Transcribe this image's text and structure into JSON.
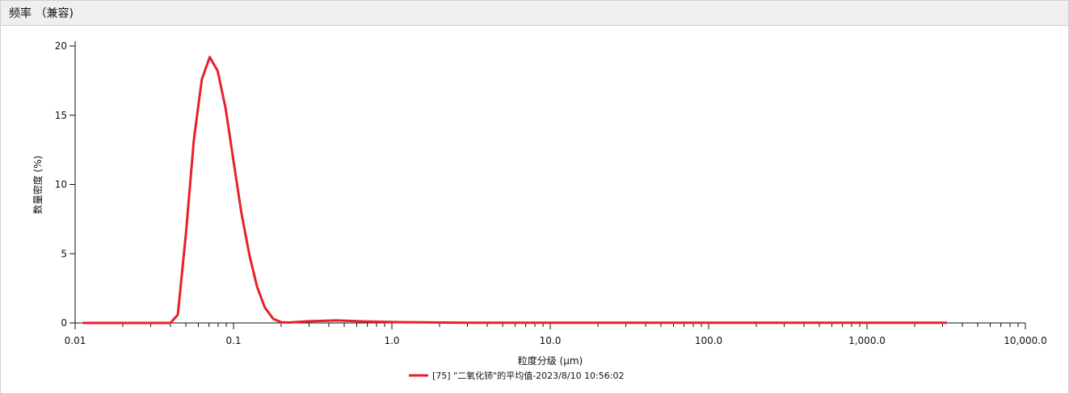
{
  "panel": {
    "title": "频率 （兼容)"
  },
  "chart_data": {
    "type": "line",
    "xlabel": "粒度分级 (μm)",
    "ylabel": "数量密度 (%)",
    "x_scale": "log",
    "xlim": [
      0.01,
      10000
    ],
    "ylim": [
      0,
      20
    ],
    "x_ticks": [
      {
        "value": 0.01,
        "label": "0.01"
      },
      {
        "value": 0.1,
        "label": "0.1"
      },
      {
        "value": 1,
        "label": "1.0"
      },
      {
        "value": 10,
        "label": "10.0"
      },
      {
        "value": 100,
        "label": "100.0"
      },
      {
        "value": 1000,
        "label": "1,000.0"
      },
      {
        "value": 10000,
        "label": "10,000.0"
      }
    ],
    "y_ticks": [
      {
        "value": 0,
        "label": "0"
      },
      {
        "value": 5,
        "label": "5"
      },
      {
        "value": 10,
        "label": "10"
      },
      {
        "value": 15,
        "label": "15"
      },
      {
        "value": 20,
        "label": "20"
      }
    ],
    "grid": false,
    "legend_position": "bottom",
    "series": [
      {
        "name": "[75] \"二氧化铈\"的平均值-2023/8/10 10:56:02",
        "color": "#e8202a",
        "x": [
          0.0112,
          0.04,
          0.0445,
          0.0501,
          0.0562,
          0.0631,
          0.0708,
          0.0794,
          0.0891,
          0.1,
          0.112,
          0.126,
          0.141,
          0.158,
          0.178,
          0.2,
          0.224,
          0.3,
          0.45,
          0.7,
          1.2,
          3,
          10,
          100,
          1000,
          3200
        ],
        "y": [
          0,
          0,
          0.6,
          6.5,
          13.2,
          17.6,
          19.2,
          18.2,
          15.5,
          11.7,
          8.0,
          4.9,
          2.6,
          1.1,
          0.3,
          0.05,
          0.03,
          0.12,
          0.18,
          0.1,
          0.05,
          0.02,
          0.02,
          0.02,
          0.02,
          0.02
        ]
      }
    ]
  }
}
